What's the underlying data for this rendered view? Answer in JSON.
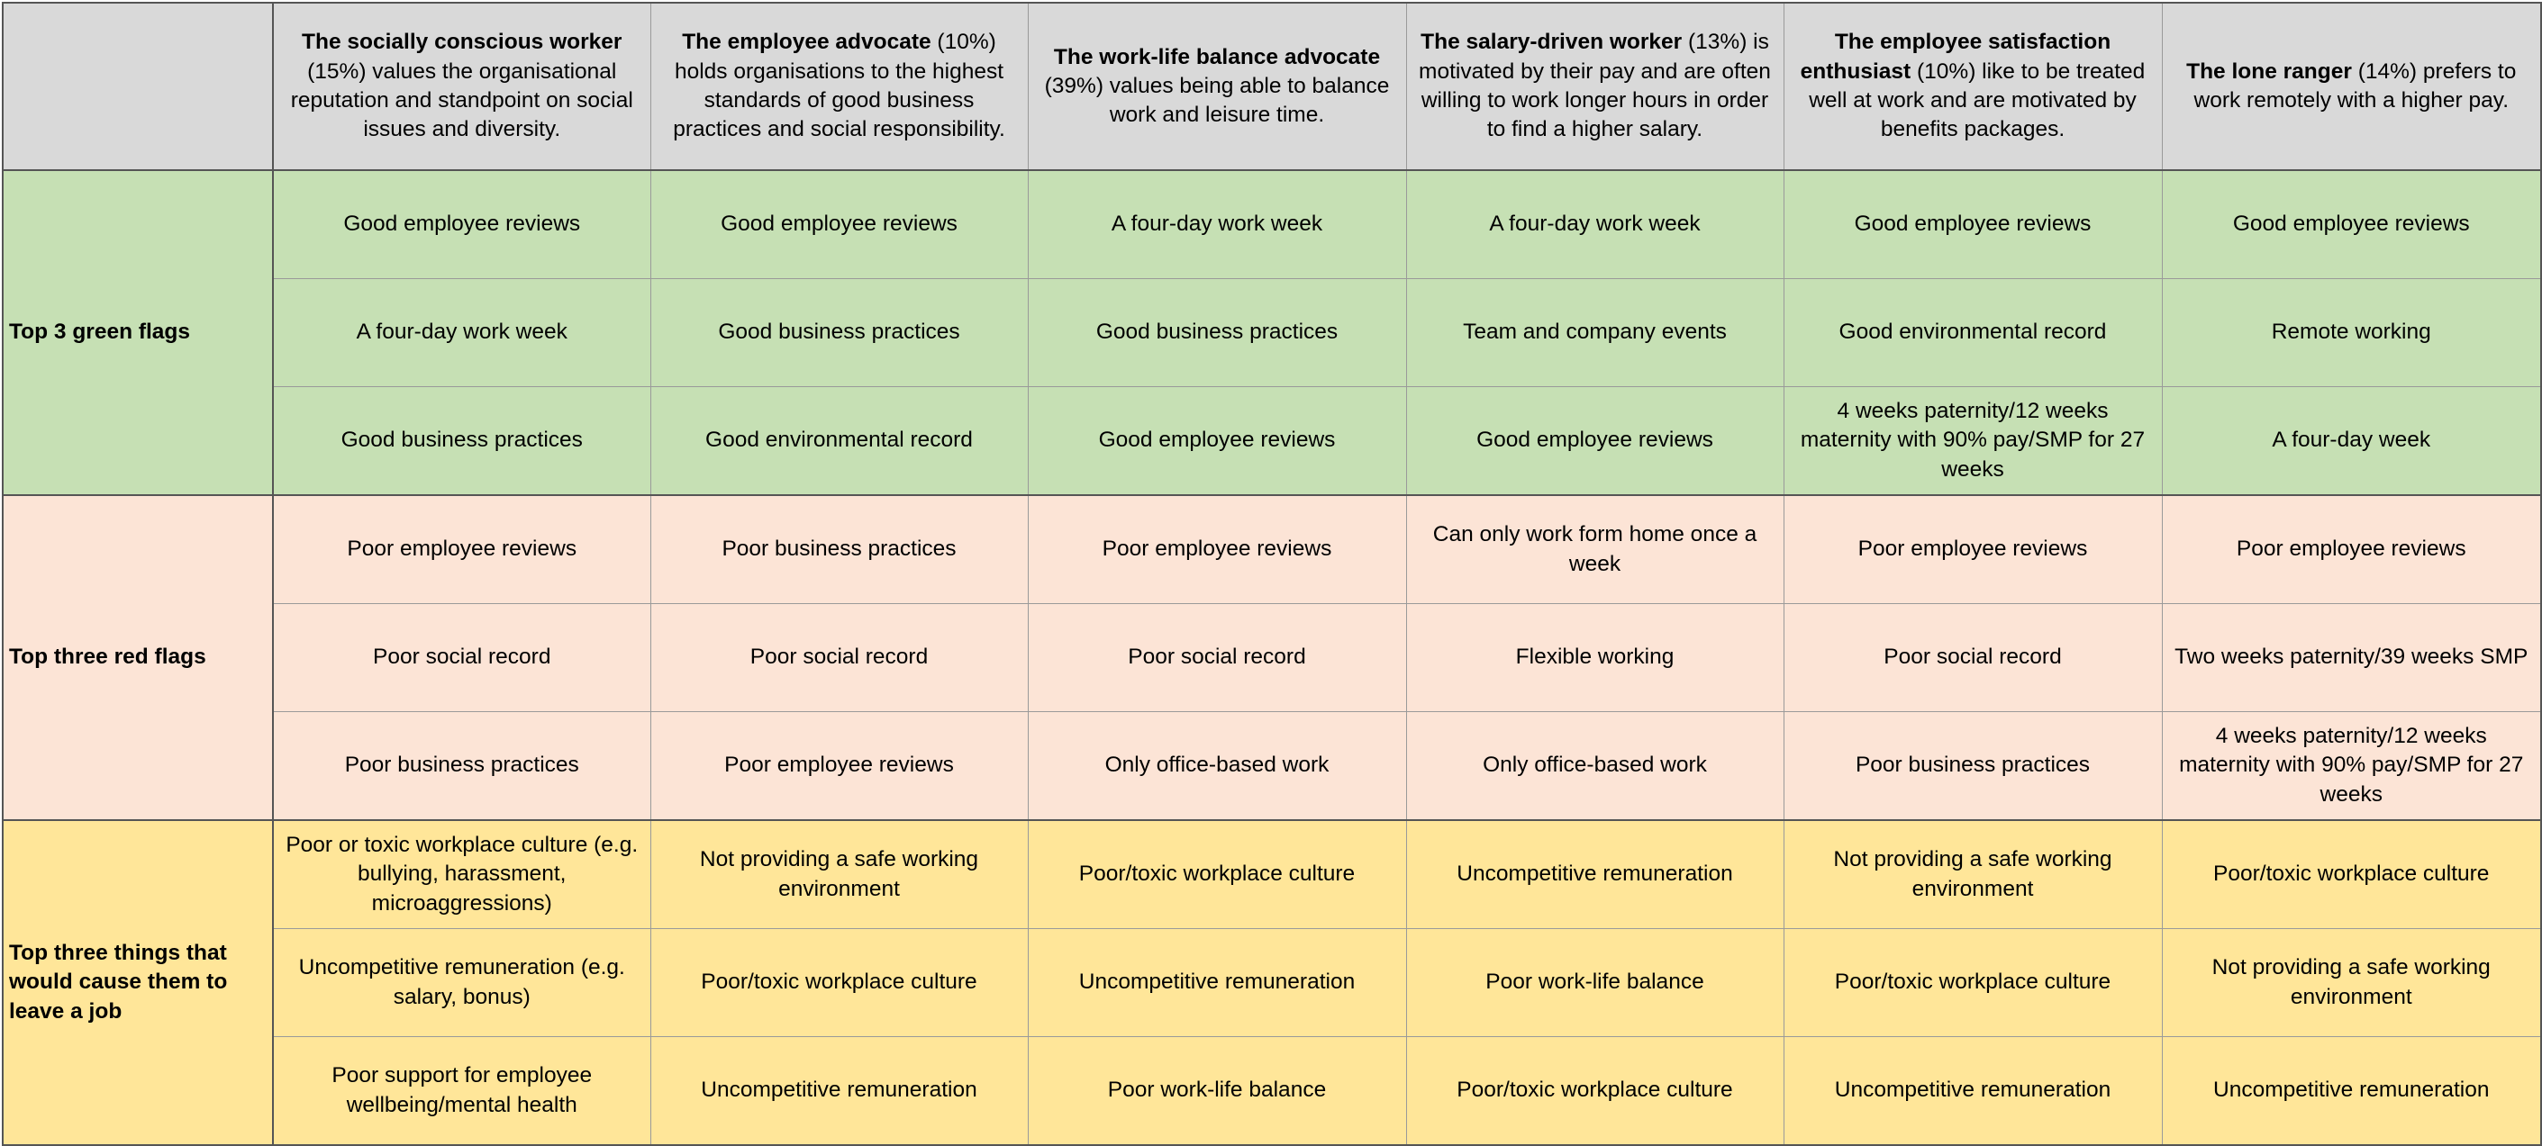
{
  "personas": [
    {
      "name": "The socially conscious worker",
      "desc": " (15%) values the organisational reputation and standpoint on social issues and diversity."
    },
    {
      "name": "The employee advocate",
      "desc": " (10%) holds organisations to the highest standards of good business practices and social responsibility."
    },
    {
      "name": "The work-life balance advocate",
      "desc": " (39%) values being able to balance work and leisure time."
    },
    {
      "name": "The salary-driven worker",
      "desc": " (13%) is motivated by their pay and are often willing to work longer hours in order to find a higher salary."
    },
    {
      "name": "The employee satisfaction enthusiast",
      "desc": " (10%) like to be treated well at work and are motivated by benefits packages."
    },
    {
      "name": "The lone ranger",
      "desc": " (14%) prefers to work remotely with a higher pay."
    }
  ],
  "sections": {
    "green": {
      "label": "Top 3 green flags",
      "rows": [
        [
          "Good employee reviews",
          "Good employee reviews",
          "A four-day work week",
          "A four-day work week",
          "Good employee reviews",
          "Good employee reviews"
        ],
        [
          "A four-day work week",
          "Good business practices",
          "Good business practices",
          "Team and company events",
          "Good environmental record",
          "Remote working"
        ],
        [
          "Good business practices",
          "Good environmental record",
          "Good employee reviews",
          "Good employee reviews",
          "4 weeks paternity/12 weeks maternity with 90% pay/SMP for 27 weeks",
          "A four-day week"
        ]
      ]
    },
    "red": {
      "label": "Top three red flags",
      "rows": [
        [
          "Poor employee reviews",
          "Poor business practices",
          "Poor employee reviews",
          "Can only work form home once a week",
          "Poor employee reviews",
          "Poor employee reviews"
        ],
        [
          "Poor social record",
          "Poor social record",
          "Poor social record",
          "Flexible working",
          "Poor social record",
          "Two weeks paternity/39 weeks SMP"
        ],
        [
          "Poor business practices",
          "Poor employee reviews",
          "Only office-based work",
          "Only office-based work",
          "Poor business practices",
          "4 weeks paternity/12 weeks maternity with 90% pay/SMP for 27 weeks"
        ]
      ]
    },
    "yellow": {
      "label": "Top three things that would cause them to leave a job",
      "rows": [
        [
          "Poor or toxic workplace culture (e.g. bullying, harassment, microaggressions)",
          "Not providing a safe working environment",
          "Poor/toxic workplace culture",
          "Uncompetitive remuneration",
          "Not providing a safe working environment",
          "Poor/toxic workplace culture"
        ],
        [
          "Uncompetitive remuneration (e.g. salary, bonus)",
          "Poor/toxic workplace culture",
          "Uncompetitive remuneration",
          "Poor work-life balance",
          "Poor/toxic workplace culture",
          "Not providing a safe working environment"
        ],
        [
          "Poor support for employee wellbeing/mental health",
          "Uncompetitive remuneration",
          "Poor work-life balance",
          "Poor/toxic workplace culture",
          "Uncompetitive remuneration",
          "Uncompetitive remuneration"
        ]
      ]
    }
  },
  "colors": {
    "header": "#d9d9d9",
    "green": "#c6e0b4",
    "red": "#fce4d6",
    "yellow": "#ffe699"
  }
}
